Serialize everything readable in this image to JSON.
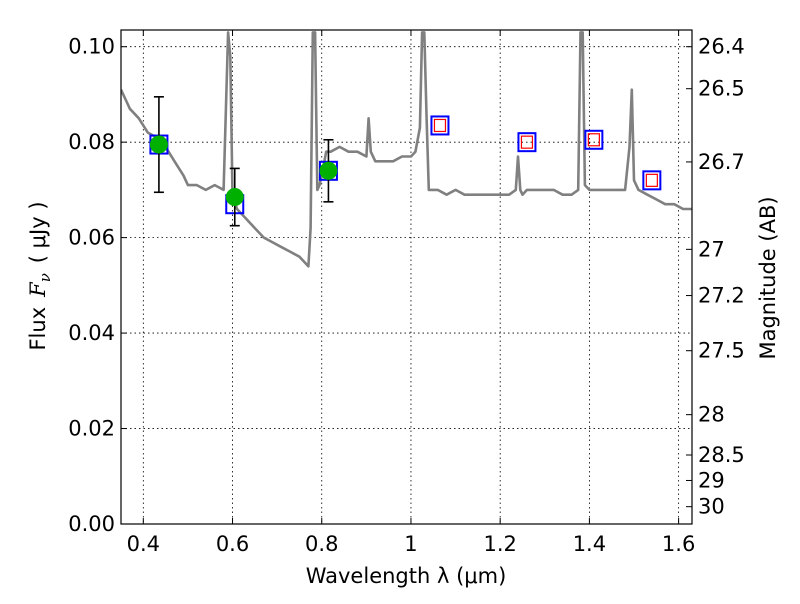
{
  "chart_data": {
    "type": "scatter",
    "xlabel": "Wavelength  λ (μm)",
    "ylabel_left_prefix": "Flux",
    "ylabel_left_symbol": "F",
    "ylabel_left_subscript": "ν",
    "ylabel_left_units": "( μJy )",
    "ylabel_right": "Magnitude (AB)",
    "xlim": [
      0.35,
      1.63
    ],
    "ylim": [
      0.0,
      0.1035
    ],
    "grid": true,
    "x_ticks": [
      0.4,
      0.6,
      0.8,
      1.0,
      1.2,
      1.4,
      1.6
    ],
    "x_tick_labels": [
      "0.4",
      "0.6",
      "0.8",
      "1",
      "1.2",
      "1.4",
      "1.6"
    ],
    "y_ticks": [
      0.0,
      0.02,
      0.04,
      0.06,
      0.08,
      0.1
    ],
    "y_tick_labels": [
      "0.00",
      "0.02",
      "0.04",
      "0.06",
      "0.08",
      "0.10"
    ],
    "right_axis_labels": [
      "26.4",
      "26.5",
      "26.7",
      "27",
      "27.2",
      "27.5",
      "28",
      "28.5",
      "29",
      "30"
    ],
    "right_axis_tick_values": [
      26.4,
      26.5,
      26.7,
      27.0,
      27.2,
      27.5,
      28.0,
      28.5,
      29.0,
      30.0
    ],
    "series": [
      {
        "kind": "model-spectrum",
        "color": "#808080",
        "x": [
          0.35,
          0.37,
          0.39,
          0.41,
          0.43,
          0.45,
          0.47,
          0.49,
          0.5,
          0.52,
          0.54,
          0.56,
          0.58,
          0.59,
          0.595,
          0.6,
          0.61,
          0.63,
          0.65,
          0.67,
          0.69,
          0.71,
          0.73,
          0.75,
          0.76,
          0.77,
          0.775,
          0.78,
          0.785,
          0.79,
          0.795,
          0.8,
          0.81,
          0.82,
          0.84,
          0.86,
          0.88,
          0.9,
          0.905,
          0.91,
          0.92,
          0.94,
          0.96,
          0.98,
          1.0,
          1.01,
          1.02,
          1.025,
          1.03,
          1.035,
          1.04,
          1.06,
          1.08,
          1.1,
          1.12,
          1.14,
          1.16,
          1.18,
          1.2,
          1.22,
          1.235,
          1.24,
          1.245,
          1.25,
          1.26,
          1.28,
          1.3,
          1.32,
          1.34,
          1.36,
          1.375,
          1.38,
          1.385,
          1.39,
          1.4,
          1.41,
          1.42,
          1.44,
          1.46,
          1.48,
          1.49,
          1.495,
          1.5,
          1.51,
          1.53,
          1.55,
          1.57,
          1.59,
          1.61,
          1.63
        ],
        "y": [
          0.091,
          0.087,
          0.085,
          0.082,
          0.081,
          0.079,
          0.076,
          0.073,
          0.071,
          0.071,
          0.07,
          0.071,
          0.07,
          0.103,
          0.098,
          0.069,
          0.066,
          0.064,
          0.062,
          0.06,
          0.059,
          0.058,
          0.057,
          0.056,
          0.055,
          0.054,
          0.062,
          0.103,
          0.103,
          0.07,
          0.071,
          0.073,
          0.078,
          0.078,
          0.079,
          0.078,
          0.078,
          0.077,
          0.085,
          0.078,
          0.076,
          0.076,
          0.076,
          0.077,
          0.077,
          0.078,
          0.083,
          0.103,
          0.103,
          0.085,
          0.07,
          0.07,
          0.069,
          0.07,
          0.069,
          0.069,
          0.069,
          0.069,
          0.069,
          0.069,
          0.07,
          0.077,
          0.07,
          0.069,
          0.07,
          0.07,
          0.07,
          0.07,
          0.069,
          0.069,
          0.07,
          0.103,
          0.103,
          0.071,
          0.07,
          0.07,
          0.07,
          0.07,
          0.07,
          0.07,
          0.079,
          0.091,
          0.072,
          0.07,
          0.069,
          0.068,
          0.067,
          0.067,
          0.066,
          0.066
        ]
      },
      {
        "kind": "observed-photometry",
        "marker": "circle",
        "color": "#00b000",
        "x": [
          0.435,
          0.605,
          0.815
        ],
        "y": [
          0.0795,
          0.0685,
          0.074
        ],
        "yerr": [
          0.01,
          0.006,
          0.0065
        ]
      },
      {
        "kind": "model-photometry",
        "marker": "square",
        "color": "#0000ff",
        "x": [
          0.435,
          0.605,
          0.815,
          1.065,
          1.26,
          1.41,
          1.54
        ],
        "y": [
          0.0795,
          0.067,
          0.074,
          0.0835,
          0.08,
          0.0805,
          0.072
        ]
      },
      {
        "kind": "predicted-photometry",
        "marker": "square-small",
        "color": "#ff0000",
        "x": [
          1.065,
          1.26,
          1.41,
          1.54
        ],
        "y": [
          0.0835,
          0.08,
          0.0805,
          0.072
        ]
      }
    ]
  }
}
